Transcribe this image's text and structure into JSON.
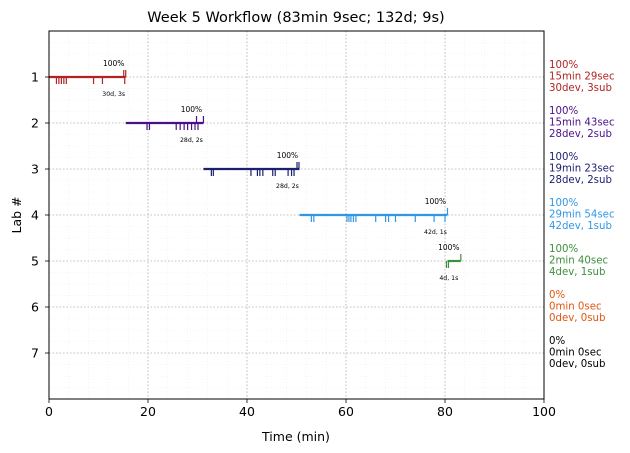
{
  "chart_data": {
    "type": "timeline",
    "title": "Week 5 Workflow (83min 9sec; 132d; 9s)",
    "xlabel": "Time (min)",
    "ylabel": "Lab #",
    "xlim": [
      0,
      100
    ],
    "ylim": [
      8,
      0
    ],
    "xticks": [
      0,
      20,
      40,
      60,
      80,
      100
    ],
    "yticks": [
      1,
      2,
      3,
      4,
      5,
      6,
      7
    ],
    "grid": true,
    "labs": [
      {
        "lab": 1,
        "color": "#b22222",
        "start": 0,
        "end": 15.5,
        "percent_label": "100%",
        "counts_label": "30d, 3s",
        "summary": [
          "100%",
          "15min 29sec",
          "30dev, 3sub"
        ],
        "dev_ticks": [
          1.5,
          2.0,
          2.5,
          3.0,
          3.5,
          9.0,
          10.8,
          15.3
        ],
        "sub_ticks": [
          15.1,
          15.5
        ]
      },
      {
        "lab": 2,
        "color": "#4b0f8a",
        "start": 15.5,
        "end": 31.2,
        "percent_label": "100%",
        "counts_label": "28d, 2s",
        "summary": [
          "100%",
          "15min 43sec",
          "28dev, 2sub"
        ],
        "dev_ticks": [
          19.8,
          20.3,
          25.7,
          26.5,
          27.3,
          28.0,
          28.8,
          29.5,
          30.1
        ],
        "sub_ticks": [
          29.8,
          31.2
        ]
      },
      {
        "lab": 3,
        "color": "#1a1f6e",
        "start": 31.2,
        "end": 50.6,
        "percent_label": "100%",
        "counts_label": "28d, 2s",
        "summary": [
          "100%",
          "19min 23sec",
          "28dev, 2sub"
        ],
        "dev_ticks": [
          32.8,
          33.2,
          40.8,
          42.1,
          42.6,
          43.2,
          45.2,
          45.7,
          48.3,
          49.0,
          49.5
        ],
        "sub_ticks": [
          50.1,
          50.5
        ]
      },
      {
        "lab": 4,
        "color": "#2f97e6",
        "start": 50.6,
        "end": 80.5,
        "percent_label": "100%",
        "counts_label": "42d, 1s",
        "summary": [
          "100%",
          "29min 54sec",
          "42dev, 1sub"
        ],
        "dev_ticks": [
          53.0,
          53.5,
          60.2,
          60.6,
          61.0,
          61.5,
          62.0,
          66.0,
          68.0,
          68.6,
          70.0,
          74.0,
          77.8,
          80.0
        ],
        "sub_ticks": [
          80.5
        ]
      },
      {
        "lab": 5,
        "color": "#3c8f3c",
        "start": 80.5,
        "end": 83.2,
        "percent_label": "100%",
        "counts_label": "4d, 1s",
        "summary": [
          "100%",
          "2min 40sec",
          "4dev, 1sub"
        ],
        "dev_ticks": [
          80.3,
          80.7
        ],
        "sub_ticks": [
          83.2
        ]
      },
      {
        "lab": 6,
        "color": "#e0560e",
        "start": null,
        "end": null,
        "percent_label": "",
        "counts_label": "",
        "summary": [
          "0%",
          "0min 0sec",
          "0dev, 0sub"
        ],
        "dev_ticks": [],
        "sub_ticks": []
      },
      {
        "lab": 7,
        "color": "#000000",
        "start": null,
        "end": null,
        "percent_label": "",
        "counts_label": "",
        "summary": [
          "0%",
          "0min 0sec",
          "0dev, 0sub"
        ],
        "dev_ticks": [],
        "sub_ticks": []
      }
    ]
  }
}
